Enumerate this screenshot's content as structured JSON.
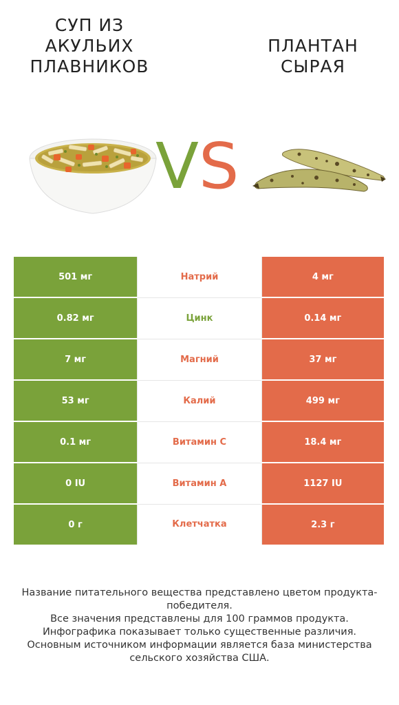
{
  "left_food": {
    "title": "Суп из акульих плавников"
  },
  "right_food": {
    "title": "Плантан сырая"
  },
  "vs": {
    "v": "V",
    "s": "S"
  },
  "colors": {
    "left_win": "#7aa23a",
    "right_win": "#e36b4a"
  },
  "rows": [
    {
      "nutrient": "Натрий",
      "left": "501 мг",
      "right": "4 мг",
      "winner": "right"
    },
    {
      "nutrient": "Цинк",
      "left": "0.82 мг",
      "right": "0.14 мг",
      "winner": "left"
    },
    {
      "nutrient": "Магний",
      "left": "7 мг",
      "right": "37 мг",
      "winner": "right"
    },
    {
      "nutrient": "Калий",
      "left": "53 мг",
      "right": "499 мг",
      "winner": "right"
    },
    {
      "nutrient": "Витамин C",
      "left": "0.1 мг",
      "right": "18.4 мг",
      "winner": "right"
    },
    {
      "nutrient": "Витамин A",
      "left": "0 IU",
      "right": "1127 IU",
      "winner": "right"
    },
    {
      "nutrient": "Клетчатка",
      "left": "0 г",
      "right": "2.3 г",
      "winner": "right"
    }
  ],
  "footer": {
    "lines": [
      "Название питательного вещества представлено цветом продукта-победителя.",
      "Все значения представлены для 100 граммов продукта.",
      "Инфографика показывает только существенные различия.",
      "Основным источником информации является база министерства сельского хозяйства США."
    ]
  }
}
